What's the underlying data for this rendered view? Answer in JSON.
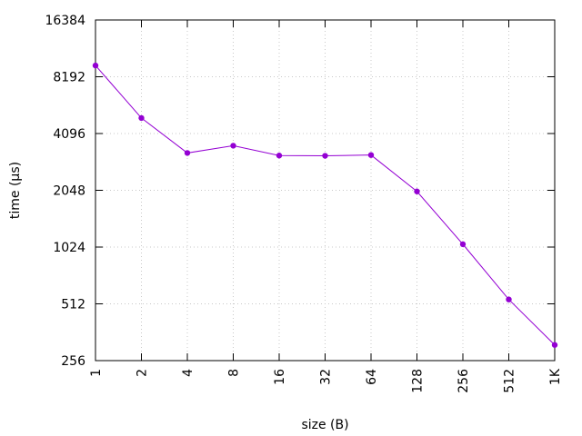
{
  "chart_data": {
    "type": "line",
    "title": "",
    "xlabel": "size (B)",
    "ylabel": "time (µs)",
    "x_scale": "log2",
    "y_scale": "log2",
    "categories": [
      "1",
      "2",
      "4",
      "8",
      "16",
      "32",
      "64",
      "128",
      "256",
      "512",
      "1K"
    ],
    "x": [
      1,
      2,
      4,
      8,
      16,
      32,
      64,
      128,
      256,
      512,
      1024
    ],
    "y_ticks": [
      256,
      512,
      1024,
      2048,
      4096,
      8192,
      16384
    ],
    "y_tick_labels": [
      "256",
      "512",
      "1024",
      "2048",
      "4096",
      "8192",
      "16384"
    ],
    "ylim": [
      256,
      16384
    ],
    "xlim": [
      1,
      1024
    ],
    "grid": true,
    "legend": "none",
    "series": [
      {
        "color": "#9400d3",
        "values": [
          9400,
          4950,
          3230,
          3530,
          3130,
          3120,
          3150,
          2020,
          1060,
          540,
          310
        ]
      }
    ]
  }
}
